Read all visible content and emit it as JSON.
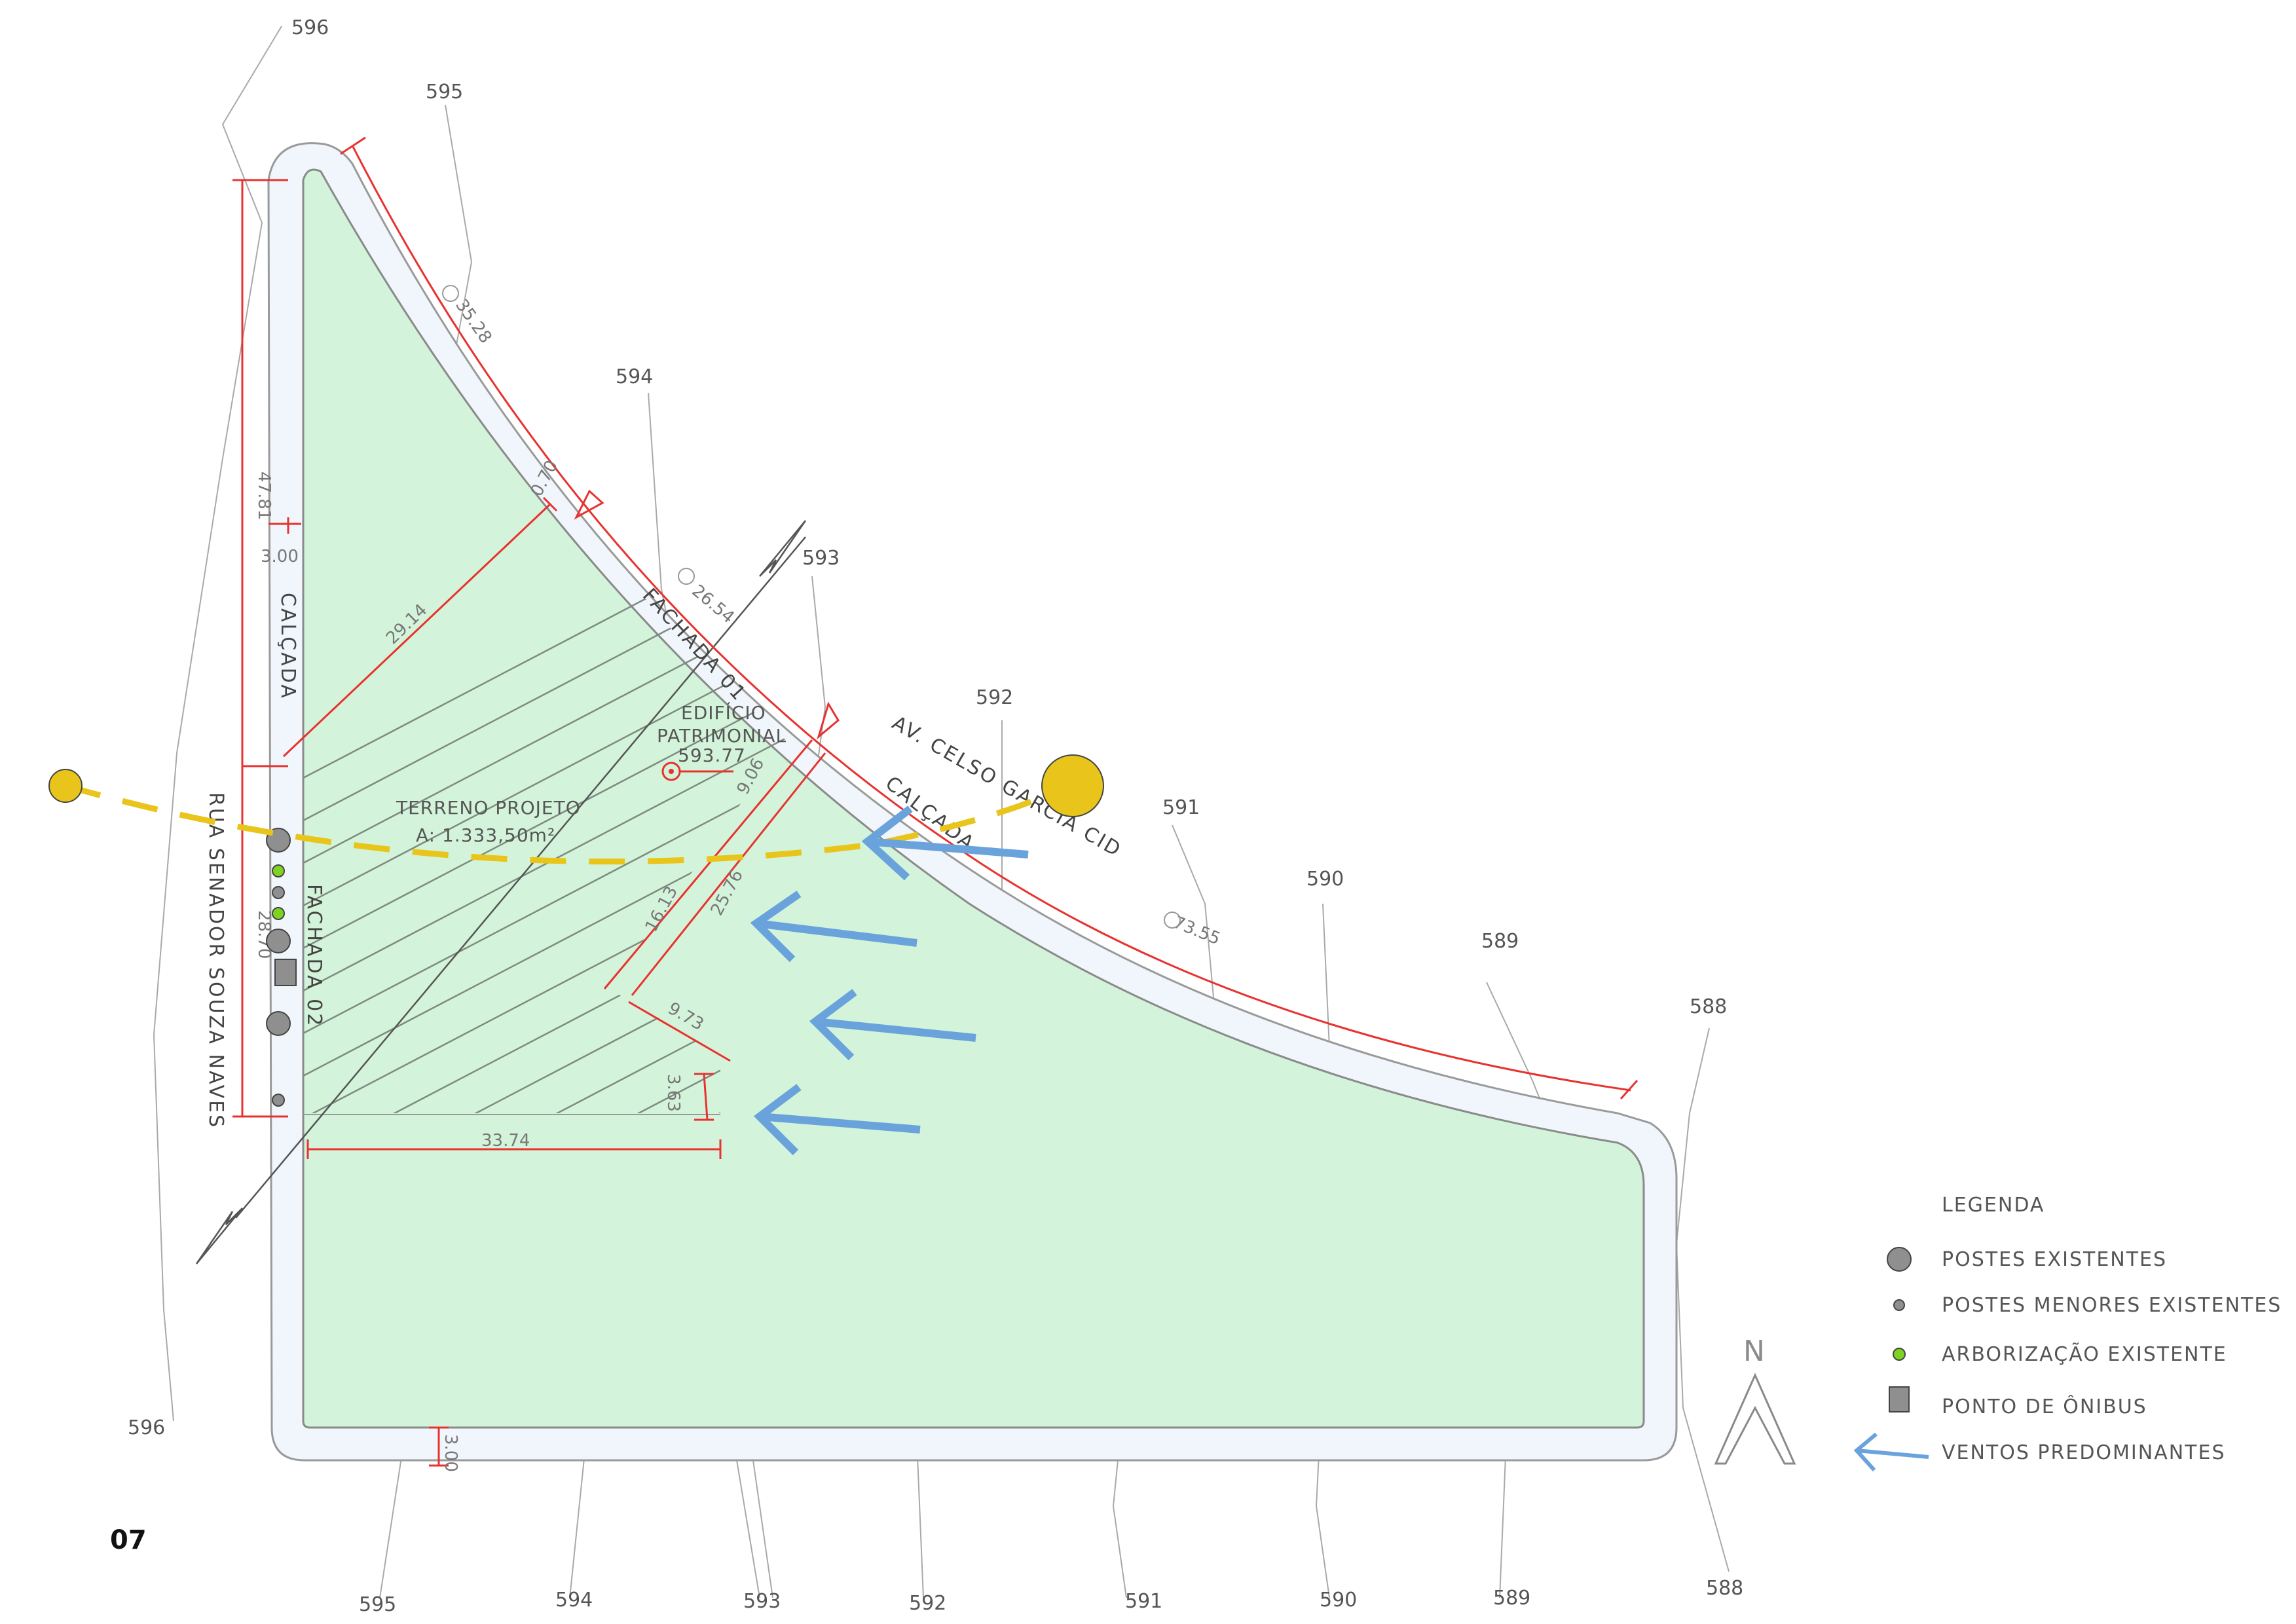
{
  "page_number": "07",
  "contour_levels": {
    "top": [
      "596",
      "595",
      "594",
      "593",
      "592",
      "591",
      "590",
      "589",
      "588"
    ],
    "bottom": [
      "596",
      "595",
      "594",
      "593",
      "592",
      "591",
      "590",
      "589",
      "588"
    ]
  },
  "streets": {
    "avenue": "AV. CELSO GARCIA CID",
    "side_street": "RUA SENADOR SOUZA NAVES",
    "sidewalk": "CALÇADA"
  },
  "facades": {
    "facade_1": "FACHADA 01",
    "facade_2": "FACHADA 02"
  },
  "lot": {
    "name": "TERRENO PROJETO",
    "area": "A: 1.333,50m²"
  },
  "heritage": {
    "line1": "EDIFÍCIO",
    "line2": "PATRIMONIAL",
    "elevation": "593.77"
  },
  "dimensions": {
    "left_upper": "47.81",
    "left_lower": "28.70",
    "sidewalk_width_left": "3.00",
    "sidewalk_width_bottom": "3.00",
    "hatch_diag": "29.14",
    "hatch_bottom": "33.74",
    "inner_short": "3.63",
    "inner_mid": "9.73",
    "inner_long": "16.13",
    "inner_diag": "25.76",
    "inner_top": "9.06",
    "notch": "0.70",
    "arc_radius_1": "35.28",
    "arc_radius_2": "26.54",
    "arc_radius_3": "73.55"
  },
  "legend": {
    "title": "LEGENDA",
    "items": [
      {
        "label": "POSTES EXISTENTES",
        "symbol": "large-pole"
      },
      {
        "label": "POSTES MENORES EXISTENTES",
        "symbol": "small-pole"
      },
      {
        "label": "ARBORIZAÇÃO EXISTENTE",
        "symbol": "tree"
      },
      {
        "label": "PONTO DE ÔNIBUS",
        "symbol": "bus-stop"
      },
      {
        "label": "VENTOS PREDOMINANTES",
        "symbol": "wind-arrow"
      }
    ]
  },
  "north": {
    "letter": "N"
  },
  "colors": {
    "lot_fill": "#d3f4da",
    "sidewalk_fill": "#f0f6fb",
    "dimension_red": "#e8322f",
    "wind_blue": "#6aa3dc",
    "sun_yellow": "#e9c51b",
    "pole_gray": "#8f8f8f",
    "tree_green": "#7ed321"
  }
}
